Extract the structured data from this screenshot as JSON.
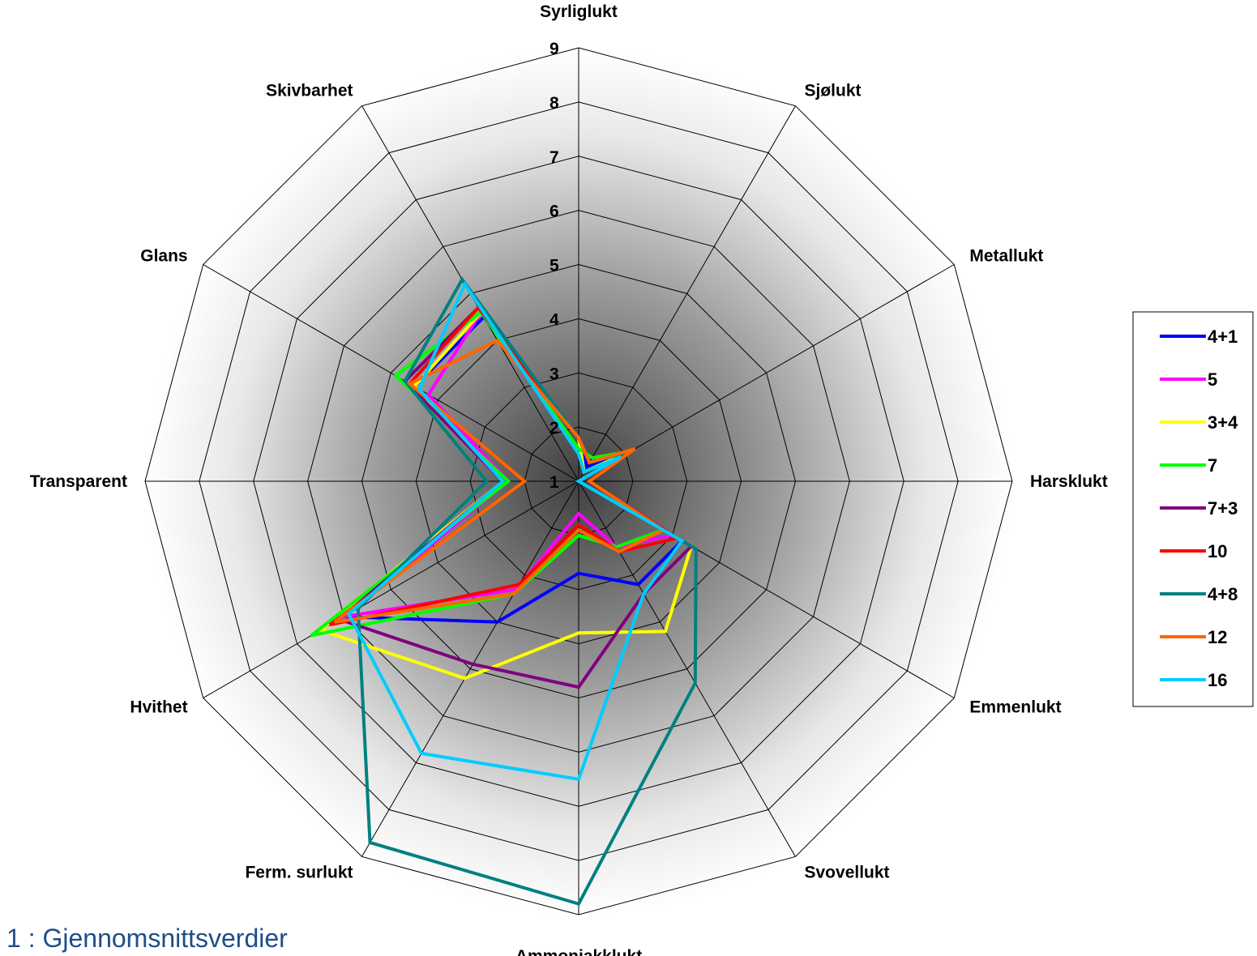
{
  "caption": "1 : Gjennomsnittsverdier",
  "chart_data": {
    "type": "radar",
    "axes": [
      "Syrliglukt",
      "Sjølukt",
      "Metallukt",
      "Harsklukt",
      "Emmenlukt",
      "Svovellukt",
      "Ammoniakklukt",
      "Ferm. surlukt",
      "Hvithet",
      "Transparent",
      "Glans",
      "Skivbarhet"
    ],
    "rlim": [
      1,
      9
    ],
    "ticks": [
      1,
      2,
      3,
      4,
      5,
      6,
      7,
      8,
      9
    ],
    "grid": true,
    "legend_position": "right",
    "series": [
      {
        "name": "4+1",
        "color": "#0000ff",
        "values": [
          1.8,
          1.3,
          2.1,
          1.0,
          3.2,
          3.2,
          2.7,
          4.0,
          6.0,
          2.4,
          4.5,
          4.5
        ]
      },
      {
        "name": "5",
        "color": "#ff00ff",
        "values": [
          1.8,
          1.4,
          2.1,
          1.0,
          3.0,
          2.4,
          1.6,
          3.3,
          6.0,
          2.3,
          4.2,
          4.6
        ]
      },
      {
        "name": "3+4",
        "color": "#ffff00",
        "values": [
          1.8,
          1.2,
          2.1,
          1.0,
          3.4,
          4.2,
          3.8,
          5.2,
          6.5,
          2.4,
          4.5,
          4.6
        ]
      },
      {
        "name": "7",
        "color": "#00ff00",
        "values": [
          1.6,
          1.5,
          2.1,
          1.0,
          2.8,
          2.4,
          2.0,
          3.4,
          6.7,
          2.3,
          4.9,
          4.6
        ]
      },
      {
        "name": "7+3",
        "color": "#800080",
        "values": [
          1.8,
          1.4,
          2.1,
          1.0,
          3.4,
          3.4,
          4.8,
          4.9,
          6.1,
          2.4,
          4.7,
          4.7
        ]
      },
      {
        "name": "10",
        "color": "#ff0000",
        "values": [
          1.8,
          1.4,
          2.2,
          1.2,
          3.1,
          2.5,
          1.8,
          3.2,
          6.3,
          2.0,
          4.6,
          4.7
        ]
      },
      {
        "name": "4+8",
        "color": "#008080",
        "values": [
          1.8,
          1.4,
          2.1,
          1.0,
          3.5,
          5.3,
          8.8,
          8.7,
          5.7,
          2.7,
          4.7,
          5.3
        ]
      },
      {
        "name": "12",
        "color": "#ff6600",
        "values": [
          1.8,
          1.4,
          2.2,
          1.2,
          2.8,
          2.5,
          1.9,
          3.4,
          6.2,
          2.0,
          4.6,
          4.0
        ]
      },
      {
        "name": "16",
        "color": "#00ccff",
        "values": [
          1.5,
          1.2,
          1.9,
          1.0,
          3.2,
          3.4,
          6.5,
          6.8,
          5.9,
          2.4,
          4.4,
          5.2
        ]
      }
    ]
  }
}
